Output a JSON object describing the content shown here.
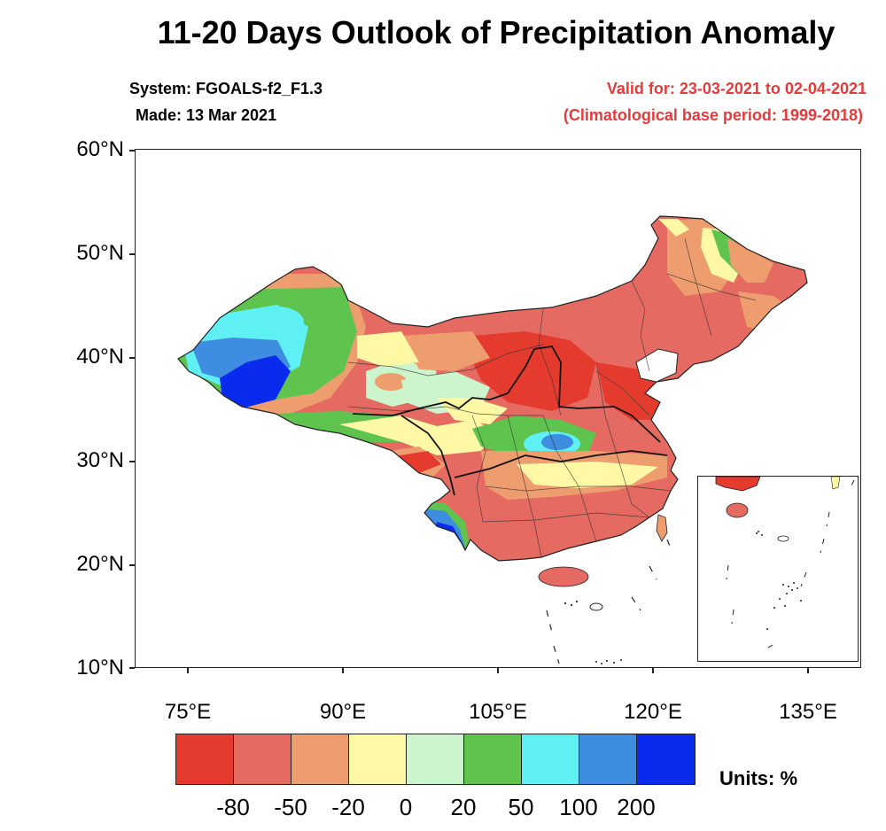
{
  "title": "11-20 Days Outlook of Precipitation Anomaly",
  "system": "System: FGOALS-f2_F1.3",
  "made": "Made: 13 Mar 2021",
  "valid": "Valid for: 23-03-2021 to 02-04-2021",
  "base_period": "(Climatological base period: 1999-2018)",
  "colors": {
    "lt_m80": "#e53b2e",
    "m80_m50": "#e56a62",
    "m50_m20": "#ee9d6e",
    "m20_0": "#fff9a5",
    "0_20": "#cdf5cd",
    "20_50": "#5ec44e",
    "50_100": "#5ef0f3",
    "100_200": "#3f8de0",
    "gt_200": "#0a2bee"
  },
  "axes": {
    "y_labels": [
      "60°N",
      "50°N",
      "40°N",
      "30°N",
      "20°N",
      "10°N"
    ],
    "x_labels": [
      "75°E",
      "90°E",
      "105°E",
      "120°E",
      "135°E"
    ]
  },
  "colorbar": {
    "colors": [
      "#e53b2e",
      "#e56a62",
      "#ee9d6e",
      "#fff9a5",
      "#cdf5cd",
      "#5ec44e",
      "#5ef0f3",
      "#3f8de0",
      "#0a2bee"
    ],
    "labels": [
      "-80",
      "-50",
      "-20",
      "0",
      "20",
      "50",
      "100",
      "200"
    ],
    "units": "Units: %"
  }
}
